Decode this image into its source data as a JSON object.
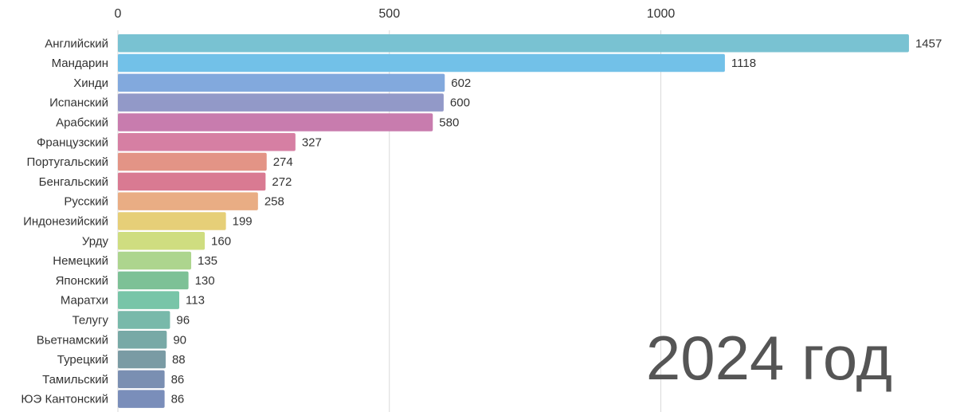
{
  "chart_data": {
    "type": "bar",
    "orientation": "horizontal",
    "title": "",
    "xlabel": "",
    "ylabel": "",
    "xlim": [
      0,
      1500
    ],
    "xticks": [
      0,
      500,
      1000
    ],
    "grid": true,
    "annotation": "2024 год",
    "categories": [
      "Английский",
      "Мандарин",
      "Хинди",
      "Испанский",
      "Арабский",
      "Французский",
      "Португальский",
      "Бенгальский",
      "Русский",
      "Индонезийский",
      "Урду",
      "Немецкий",
      "Японский",
      "Маратхи",
      "Телугу",
      "Вьетнамский",
      "Турецкий",
      "Тамильский",
      "ЮЭ Кантонский"
    ],
    "values": [
      1457,
      1118,
      602,
      600,
      580,
      327,
      274,
      272,
      258,
      199,
      160,
      135,
      130,
      113,
      96,
      90,
      88,
      86,
      86
    ],
    "colors": [
      "#79c2d2",
      "#72c1e8",
      "#82a9dd",
      "#9299c8",
      "#c87cae",
      "#d67fa3",
      "#e39486",
      "#d97a92",
      "#e9ad84",
      "#e6cf78",
      "#cfdd80",
      "#add58e",
      "#7dc196",
      "#78c5a8",
      "#78b9aa",
      "#78a9a6",
      "#7a9ba4",
      "#7a8fb2",
      "#7a8eba"
    ]
  }
}
